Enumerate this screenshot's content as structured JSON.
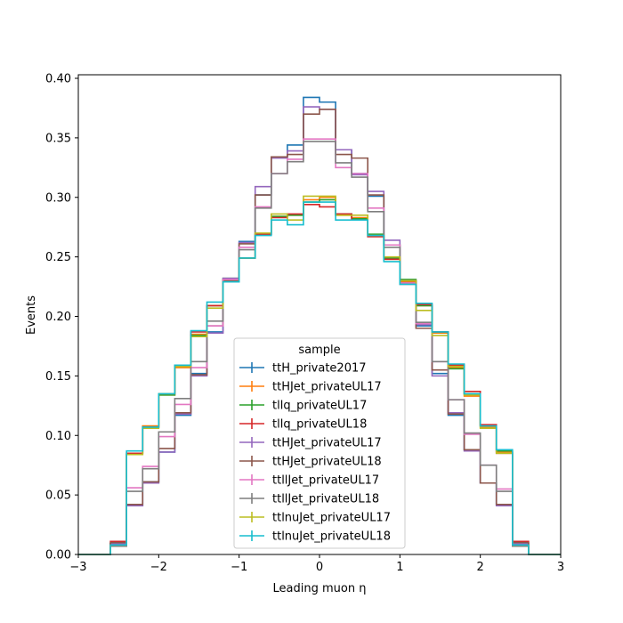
{
  "chart_data": {
    "type": "step-histogram",
    "xlabel": "Leading muon η",
    "ylabel": "Events",
    "xlim": [
      -3,
      3
    ],
    "ylim": [
      0,
      0.403
    ],
    "xticks": [
      -3,
      -2,
      -1,
      0,
      1,
      2,
      3
    ],
    "xtick_labels": [
      "−3",
      "−2",
      "−1",
      "0",
      "1",
      "2",
      "3"
    ],
    "yticks": [
      0,
      0.05,
      0.1,
      0.15,
      0.2,
      0.25,
      0.3,
      0.35,
      0.4
    ],
    "ytick_labels": [
      "0.00",
      "0.05",
      "0.10",
      "0.15",
      "0.20",
      "0.25",
      "0.30",
      "0.35",
      "0.40"
    ],
    "bin_edges": [
      -3.0,
      -2.8,
      -2.6,
      -2.4,
      -2.2,
      -2.0,
      -1.8,
      -1.6,
      -1.4,
      -1.2,
      -1.0,
      -0.8,
      -0.6,
      -0.4,
      -0.2,
      0.0,
      0.2,
      0.4,
      0.6,
      0.8,
      1.0,
      1.2,
      1.4,
      1.6,
      1.8,
      2.0,
      2.2,
      2.4,
      2.6,
      2.8,
      3.0
    ],
    "legend": {
      "title": "sample",
      "placement": "lower-center"
    },
    "series": [
      {
        "name": "ttH_private2017",
        "color": "#1f77b4",
        "values": [
          0,
          0,
          0.009,
          0.041,
          0.061,
          0.086,
          0.117,
          0.152,
          0.187,
          0.231,
          0.263,
          0.302,
          0.334,
          0.344,
          0.384,
          0.38,
          0.34,
          0.32,
          0.301,
          0.26,
          0.229,
          0.192,
          0.152,
          0.117,
          0.088,
          0.06,
          0.042,
          0.008,
          0,
          0
        ]
      },
      {
        "name": "ttHJet_privateUL17",
        "color": "#ff7f0e",
        "values": [
          0,
          0,
          0.008,
          0.084,
          0.108,
          0.134,
          0.157,
          0.185,
          0.209,
          0.231,
          0.249,
          0.269,
          0.284,
          0.285,
          0.298,
          0.3,
          0.285,
          0.283,
          0.268,
          0.248,
          0.229,
          0.209,
          0.186,
          0.157,
          0.133,
          0.107,
          0.086,
          0.008,
          0,
          0
        ]
      },
      {
        "name": "tllq_privateUL17",
        "color": "#2ca02c",
        "values": [
          0,
          0,
          0.009,
          0.085,
          0.107,
          0.134,
          0.158,
          0.184,
          0.209,
          0.232,
          0.249,
          0.269,
          0.284,
          0.285,
          0.296,
          0.298,
          0.286,
          0.282,
          0.269,
          0.249,
          0.231,
          0.209,
          0.187,
          0.156,
          0.135,
          0.108,
          0.087,
          0.008,
          0,
          0
        ]
      },
      {
        "name": "tllq_privateUL18",
        "color": "#d62728",
        "values": [
          0,
          0,
          0.011,
          0.085,
          0.107,
          0.135,
          0.159,
          0.187,
          0.209,
          0.229,
          0.249,
          0.269,
          0.283,
          0.286,
          0.294,
          0.292,
          0.286,
          0.281,
          0.267,
          0.248,
          0.23,
          0.21,
          0.187,
          0.159,
          0.137,
          0.109,
          0.085,
          0.011,
          0,
          0
        ]
      },
      {
        "name": "ttHJet_privateUL17",
        "color": "#9467bd",
        "values": [
          0,
          0,
          0.009,
          0.041,
          0.06,
          0.086,
          0.118,
          0.15,
          0.186,
          0.232,
          0.262,
          0.309,
          0.333,
          0.339,
          0.376,
          0.374,
          0.34,
          0.319,
          0.305,
          0.264,
          0.228,
          0.193,
          0.15,
          0.119,
          0.087,
          0.06,
          0.041,
          0.009,
          0,
          0
        ]
      },
      {
        "name": "ttHJet_privateUL18",
        "color": "#8c564b",
        "values": [
          0,
          0,
          0.01,
          0.042,
          0.061,
          0.089,
          0.119,
          0.151,
          0.192,
          0.23,
          0.261,
          0.302,
          0.334,
          0.336,
          0.37,
          0.374,
          0.336,
          0.333,
          0.302,
          0.26,
          0.23,
          0.19,
          0.155,
          0.118,
          0.088,
          0.06,
          0.042,
          0.01,
          0,
          0
        ]
      },
      {
        "name": "ttllJet_privateUL17",
        "color": "#e377c2",
        "values": [
          0,
          0,
          0.007,
          0.056,
          0.074,
          0.099,
          0.126,
          0.157,
          0.192,
          0.231,
          0.258,
          0.292,
          0.32,
          0.332,
          0.349,
          0.349,
          0.325,
          0.32,
          0.291,
          0.26,
          0.228,
          0.194,
          0.162,
          0.13,
          0.101,
          0.075,
          0.055,
          0.007,
          0,
          0
        ]
      },
      {
        "name": "ttllJet_privateUL18",
        "color": "#7f7f7f",
        "values": [
          0,
          0,
          0.007,
          0.053,
          0.072,
          0.103,
          0.131,
          0.162,
          0.196,
          0.229,
          0.256,
          0.291,
          0.32,
          0.33,
          0.347,
          0.347,
          0.329,
          0.317,
          0.288,
          0.258,
          0.227,
          0.195,
          0.162,
          0.13,
          0.102,
          0.075,
          0.053,
          0.007,
          0,
          0
        ]
      },
      {
        "name": "ttlnuJet_privateUL17",
        "color": "#bcbd22",
        "values": [
          0,
          0,
          0.008,
          0.084,
          0.106,
          0.135,
          0.158,
          0.183,
          0.207,
          0.229,
          0.249,
          0.27,
          0.286,
          0.281,
          0.301,
          0.301,
          0.285,
          0.285,
          0.268,
          0.25,
          0.23,
          0.205,
          0.184,
          0.158,
          0.134,
          0.106,
          0.085,
          0.008,
          0,
          0
        ]
      },
      {
        "name": "ttlnuJet_privateUL18",
        "color": "#17becf",
        "values": [
          0,
          0,
          0.008,
          0.087,
          0.107,
          0.135,
          0.159,
          0.188,
          0.212,
          0.229,
          0.249,
          0.268,
          0.281,
          0.277,
          0.296,
          0.296,
          0.281,
          0.281,
          0.268,
          0.246,
          0.227,
          0.211,
          0.187,
          0.16,
          0.135,
          0.108,
          0.088,
          0.008,
          0,
          0
        ]
      }
    ]
  }
}
